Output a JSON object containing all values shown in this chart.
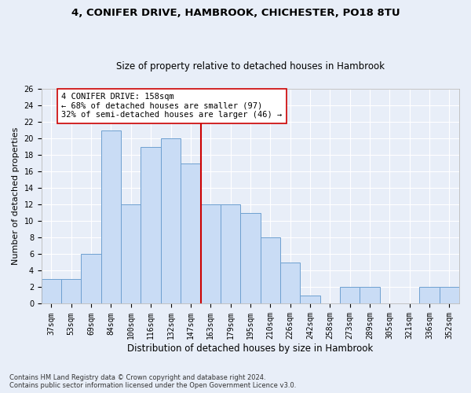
{
  "title1": "4, CONIFER DRIVE, HAMBROOK, CHICHESTER, PO18 8TU",
  "title2": "Size of property relative to detached houses in Hambrook",
  "xlabel": "Distribution of detached houses by size in Hambrook",
  "ylabel": "Number of detached properties",
  "categories": [
    "37sqm",
    "53sqm",
    "69sqm",
    "84sqm",
    "100sqm",
    "116sqm",
    "132sqm",
    "147sqm",
    "163sqm",
    "179sqm",
    "195sqm",
    "210sqm",
    "226sqm",
    "242sqm",
    "258sqm",
    "273sqm",
    "289sqm",
    "305sqm",
    "321sqm",
    "336sqm",
    "352sqm"
  ],
  "values": [
    3,
    3,
    6,
    21,
    12,
    19,
    20,
    17,
    12,
    12,
    11,
    8,
    5,
    1,
    0,
    2,
    2,
    0,
    0,
    2,
    2
  ],
  "bar_color": "#c9dcf5",
  "bar_edge_color": "#6ea0d0",
  "vline_color": "#cc0000",
  "vline_index": 7.5,
  "annotation_text": "4 CONIFER DRIVE: 158sqm\n← 68% of detached houses are smaller (97)\n32% of semi-detached houses are larger (46) →",
  "annotation_box_color": "#ffffff",
  "annotation_box_edge_color": "#cc0000",
  "ylim": [
    0,
    26
  ],
  "yticks": [
    0,
    2,
    4,
    6,
    8,
    10,
    12,
    14,
    16,
    18,
    20,
    22,
    24,
    26
  ],
  "footnote1": "Contains HM Land Registry data © Crown copyright and database right 2024.",
  "footnote2": "Contains public sector information licensed under the Open Government Licence v3.0.",
  "background_color": "#e8eef8",
  "grid_color": "#ffffff",
  "title1_fontsize": 9.5,
  "title2_fontsize": 8.5,
  "ylabel_fontsize": 8,
  "xlabel_fontsize": 8.5,
  "tick_fontsize": 7,
  "annot_fontsize": 7.5,
  "footnote_fontsize": 6
}
